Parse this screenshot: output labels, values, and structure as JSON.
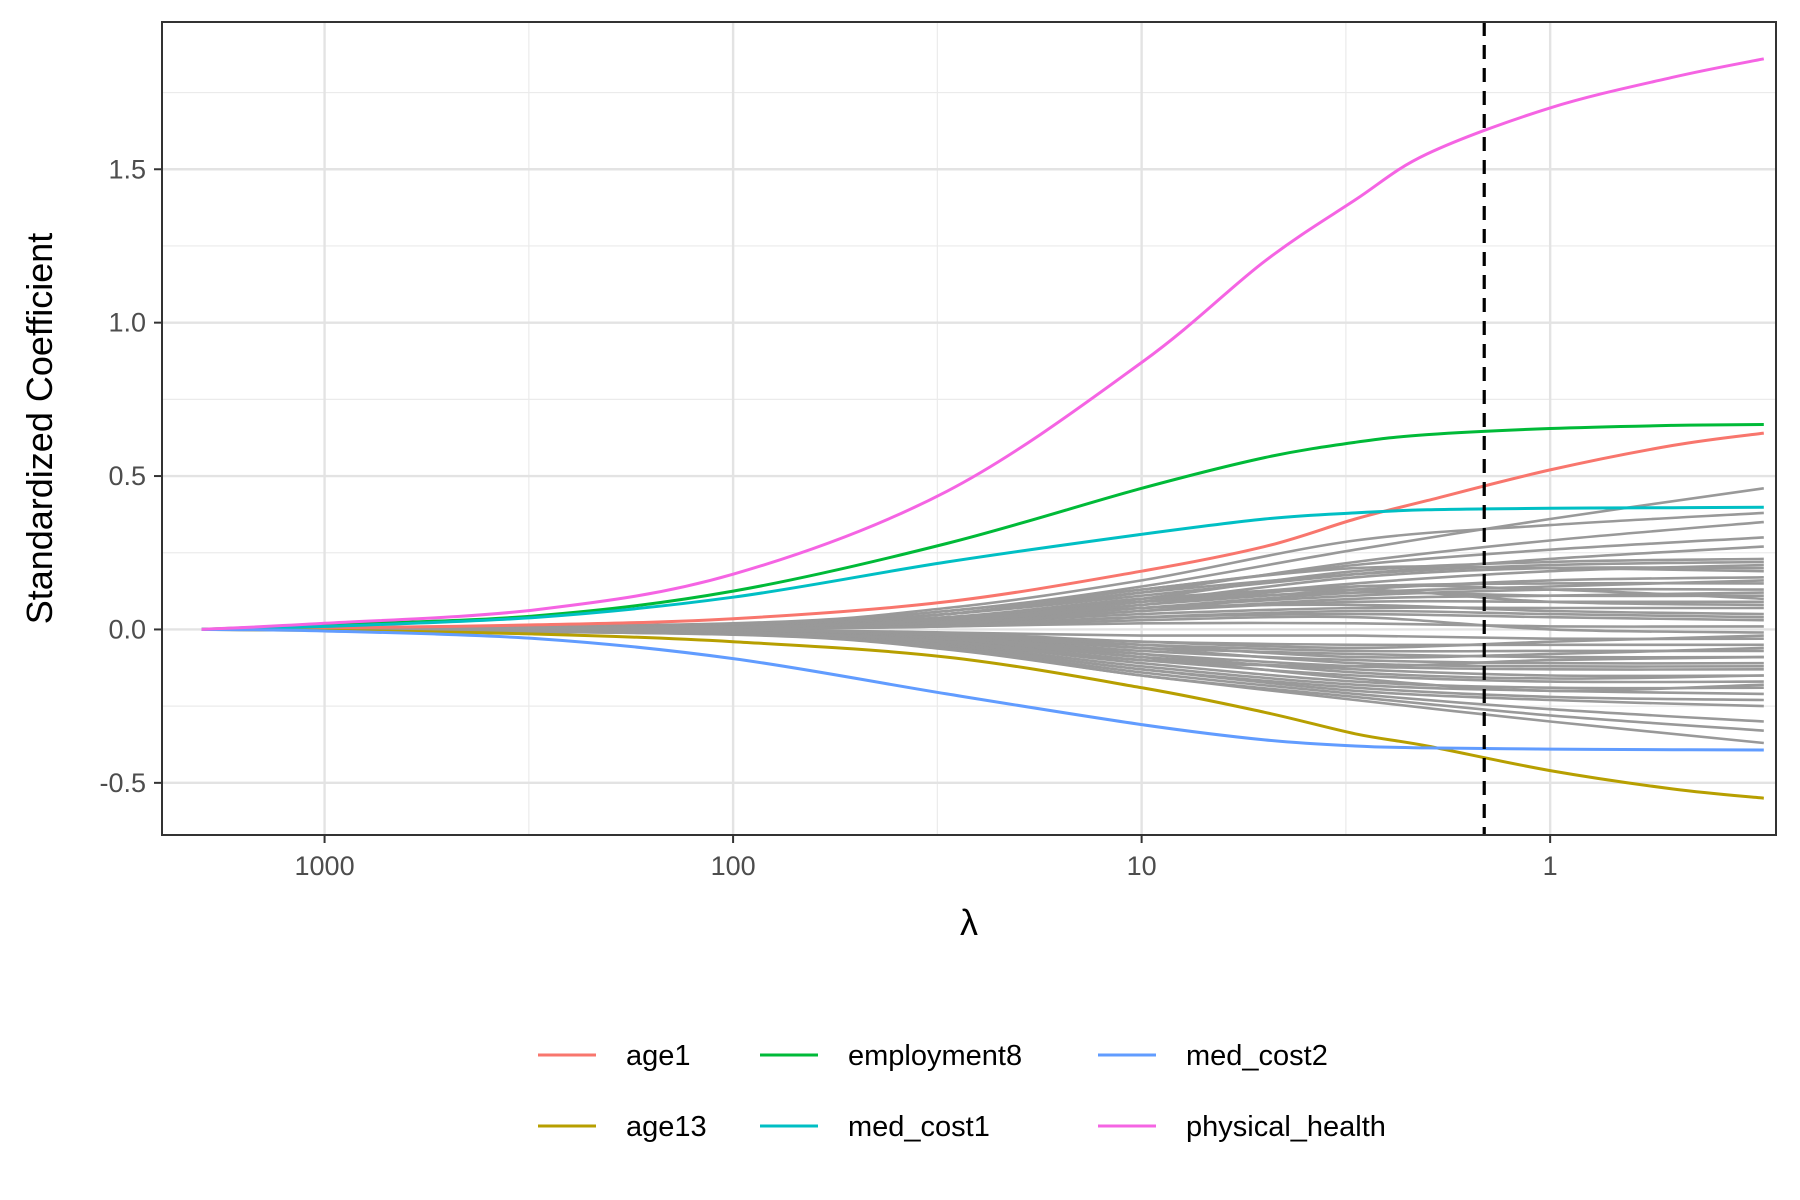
{
  "chart_data": {
    "type": "line",
    "xlabel": "λ",
    "ylabel": "Standardized Coefficient",
    "x_scale": "log-reversed",
    "xlim": [
      2500,
      0.28
    ],
    "ylim": [
      -0.67,
      1.98
    ],
    "x_ticks": [
      {
        "value": 1000,
        "label": "1000"
      },
      {
        "value": 100,
        "label": "100"
      },
      {
        "value": 10,
        "label": "10"
      },
      {
        "value": 1,
        "label": "1"
      }
    ],
    "y_ticks": [
      {
        "value": -0.5,
        "label": "-0.5"
      },
      {
        "value": 0.0,
        "label": "0.0"
      },
      {
        "value": 0.5,
        "label": "0.5"
      },
      {
        "value": 1.0,
        "label": "1.0"
      },
      {
        "value": 1.5,
        "label": "1.5"
      }
    ],
    "grid": true,
    "legend_position": "bottom",
    "reference_line": {
      "x": 1.45,
      "style": "dashed",
      "color": "#000000"
    },
    "series": [
      {
        "name": "age1",
        "color": "#F8766D",
        "x": [
          2000,
          1000,
          300,
          100,
          30,
          10,
          5,
          3,
          2,
          1,
          0.5,
          0.3
        ],
        "y": [
          0.0,
          0.005,
          0.015,
          0.035,
          0.09,
          0.19,
          0.27,
          0.36,
          0.42,
          0.52,
          0.6,
          0.64
        ]
      },
      {
        "name": "age13",
        "color": "#B79F00",
        "x": [
          2000,
          1000,
          300,
          100,
          30,
          10,
          5,
          3,
          2,
          1,
          0.5,
          0.3
        ],
        "y": [
          0.0,
          -0.003,
          -0.015,
          -0.04,
          -0.09,
          -0.19,
          -0.27,
          -0.34,
          -0.38,
          -0.46,
          -0.52,
          -0.55
        ]
      },
      {
        "name": "employment8",
        "color": "#00BA38",
        "x": [
          2000,
          1000,
          300,
          100,
          30,
          10,
          5,
          3,
          2,
          1,
          0.5,
          0.3
        ],
        "y": [
          0.0,
          0.015,
          0.045,
          0.125,
          0.28,
          0.46,
          0.56,
          0.61,
          0.635,
          0.655,
          0.665,
          0.668
        ]
      },
      {
        "name": "med_cost1",
        "color": "#00BFC4",
        "x": [
          2000,
          1000,
          300,
          100,
          30,
          10,
          5,
          3,
          2,
          1,
          0.5,
          0.3
        ],
        "y": [
          0.0,
          0.01,
          0.04,
          0.105,
          0.22,
          0.31,
          0.36,
          0.38,
          0.39,
          0.395,
          0.397,
          0.398
        ]
      },
      {
        "name": "med_cost2",
        "color": "#619CFF",
        "x": [
          2000,
          1000,
          300,
          100,
          30,
          10,
          5,
          3,
          2,
          1,
          0.5,
          0.3
        ],
        "y": [
          0.0,
          -0.005,
          -0.03,
          -0.095,
          -0.21,
          -0.31,
          -0.36,
          -0.38,
          -0.386,
          -0.39,
          -0.392,
          -0.393
        ]
      },
      {
        "name": "physical_health",
        "color": "#F564E3",
        "x": [
          2000,
          1000,
          300,
          100,
          30,
          10,
          5,
          3,
          2,
          1,
          0.5,
          0.3
        ],
        "y": [
          0.0,
          0.02,
          0.065,
          0.18,
          0.45,
          0.87,
          1.2,
          1.4,
          1.55,
          1.7,
          1.8,
          1.86
        ]
      }
    ],
    "other_series_color": "#999999",
    "other_series": [
      {
        "x": [
          2000,
          100,
          30,
          10,
          3,
          1,
          0.3
        ],
        "y": [
          0,
          0.018,
          0.06,
          0.14,
          0.26,
          0.36,
          0.46
        ]
      },
      {
        "x": [
          2000,
          100,
          30,
          10,
          3,
          1,
          0.3
        ],
        "y": [
          0,
          0.02,
          0.07,
          0.16,
          0.29,
          0.34,
          0.38
        ]
      },
      {
        "x": [
          2000,
          100,
          30,
          10,
          3,
          1,
          0.3
        ],
        "y": [
          0,
          0.015,
          0.05,
          0.12,
          0.22,
          0.29,
          0.35
        ]
      },
      {
        "x": [
          2000,
          100,
          30,
          10,
          3,
          1,
          0.3
        ],
        "y": [
          0,
          0.017,
          0.06,
          0.13,
          0.21,
          0.26,
          0.3
        ]
      },
      {
        "x": [
          2000,
          100,
          30,
          10,
          3,
          1,
          0.3
        ],
        "y": [
          0,
          0.012,
          0.05,
          0.11,
          0.18,
          0.23,
          0.27
        ]
      },
      {
        "x": [
          2000,
          100,
          30,
          10,
          3,
          1,
          0.3
        ],
        "y": [
          0,
          0.014,
          0.05,
          0.12,
          0.18,
          0.21,
          0.22
        ]
      },
      {
        "x": [
          2000,
          100,
          30,
          10,
          3,
          1,
          0.3
        ],
        "y": [
          0,
          0.01,
          0.04,
          0.09,
          0.15,
          0.19,
          0.21
        ]
      },
      {
        "x": [
          2000,
          100,
          30,
          10,
          3,
          1,
          0.3
        ],
        "y": [
          0,
          0.012,
          0.05,
          0.13,
          0.2,
          0.2,
          0.19
        ]
      },
      {
        "x": [
          2000,
          100,
          30,
          10,
          3,
          1,
          0.3
        ],
        "y": [
          0,
          0.008,
          0.03,
          0.08,
          0.13,
          0.16,
          0.17
        ]
      },
      {
        "x": [
          2000,
          100,
          30,
          10,
          3,
          1,
          0.3
        ],
        "y": [
          0,
          0.01,
          0.04,
          0.1,
          0.14,
          0.15,
          0.15
        ]
      },
      {
        "x": [
          2000,
          100,
          30,
          10,
          3,
          1,
          0.3
        ],
        "y": [
          0,
          0.007,
          0.025,
          0.07,
          0.11,
          0.13,
          0.13
        ]
      },
      {
        "x": [
          2000,
          100,
          30,
          10,
          3,
          1,
          0.3
        ],
        "y": [
          0,
          0.008,
          0.035,
          0.09,
          0.12,
          0.11,
          0.11
        ]
      },
      {
        "x": [
          2000,
          100,
          30,
          10,
          3,
          1,
          0.3
        ],
        "y": [
          0,
          0.006,
          0.02,
          0.06,
          0.09,
          0.09,
          0.09
        ]
      },
      {
        "x": [
          2000,
          100,
          30,
          10,
          3,
          1,
          0.3
        ],
        "y": [
          0,
          0.005,
          0.02,
          0.05,
          0.07,
          0.07,
          0.07
        ]
      },
      {
        "x": [
          2000,
          100,
          30,
          10,
          3,
          1,
          0.3
        ],
        "y": [
          0,
          0.006,
          0.025,
          0.07,
          0.08,
          0.06,
          0.05
        ]
      },
      {
        "x": [
          2000,
          100,
          30,
          10,
          3,
          1,
          0.3
        ],
        "y": [
          0,
          0.004,
          0.015,
          0.04,
          0.05,
          0.04,
          0.03
        ]
      },
      {
        "x": [
          2000,
          100,
          30,
          10,
          3,
          1,
          0.3
        ],
        "y": [
          0,
          0.003,
          0.01,
          0.02,
          0.02,
          0.01,
          0.01
        ]
      },
      {
        "x": [
          2000,
          100,
          30,
          10,
          3,
          1,
          0.3
        ],
        "y": [
          0,
          0.003,
          0.01,
          0.03,
          0.04,
          0.0,
          -0.01
        ]
      },
      {
        "x": [
          2000,
          100,
          30,
          10,
          3,
          1,
          0.3
        ],
        "y": [
          0,
          -0.002,
          -0.01,
          -0.02,
          -0.02,
          -0.03,
          -0.03
        ]
      },
      {
        "x": [
          2000,
          100,
          30,
          10,
          3,
          1,
          0.3
        ],
        "y": [
          0,
          -0.003,
          -0.015,
          -0.04,
          -0.05,
          -0.05,
          -0.05
        ]
      },
      {
        "x": [
          2000,
          100,
          30,
          10,
          3,
          1,
          0.3
        ],
        "y": [
          0,
          -0.004,
          -0.02,
          -0.05,
          -0.07,
          -0.07,
          -0.07
        ]
      },
      {
        "x": [
          2000,
          100,
          30,
          10,
          3,
          1,
          0.3
        ],
        "y": [
          0,
          -0.005,
          -0.02,
          -0.06,
          -0.08,
          -0.09,
          -0.09
        ]
      },
      {
        "x": [
          2000,
          100,
          30,
          10,
          3,
          1,
          0.3
        ],
        "y": [
          0,
          -0.006,
          -0.025,
          -0.07,
          -0.1,
          -0.11,
          -0.11
        ]
      },
      {
        "x": [
          2000,
          100,
          30,
          10,
          3,
          1,
          0.3
        ],
        "y": [
          0,
          -0.007,
          -0.03,
          -0.08,
          -0.12,
          -0.13,
          -0.13
        ]
      },
      {
        "x": [
          2000,
          100,
          30,
          10,
          3,
          1,
          0.3
        ],
        "y": [
          0,
          -0.008,
          -0.035,
          -0.09,
          -0.13,
          -0.15,
          -0.15
        ]
      },
      {
        "x": [
          2000,
          100,
          30,
          10,
          3,
          1,
          0.3
        ],
        "y": [
          0,
          -0.009,
          -0.04,
          -0.1,
          -0.15,
          -0.17,
          -0.17
        ]
      },
      {
        "x": [
          2000,
          100,
          30,
          10,
          3,
          1,
          0.3
        ],
        "y": [
          0,
          -0.01,
          -0.045,
          -0.11,
          -0.17,
          -0.19,
          -0.19
        ]
      },
      {
        "x": [
          2000,
          100,
          30,
          10,
          3,
          1,
          0.3
        ],
        "y": [
          0,
          -0.012,
          -0.05,
          -0.12,
          -0.18,
          -0.2,
          -0.21
        ]
      },
      {
        "x": [
          2000,
          100,
          30,
          10,
          3,
          1,
          0.3
        ],
        "y": [
          0,
          -0.013,
          -0.055,
          -0.13,
          -0.19,
          -0.22,
          -0.23
        ]
      },
      {
        "x": [
          2000,
          100,
          30,
          10,
          3,
          1,
          0.3
        ],
        "y": [
          0,
          -0.013,
          -0.055,
          -0.13,
          -0.2,
          -0.23,
          -0.25
        ]
      },
      {
        "x": [
          2000,
          100,
          30,
          10,
          3,
          1,
          0.3
        ],
        "y": [
          0,
          -0.015,
          -0.06,
          -0.14,
          -0.21,
          -0.26,
          -0.3
        ]
      },
      {
        "x": [
          2000,
          100,
          30,
          10,
          3,
          1,
          0.3
        ],
        "y": [
          0,
          -0.016,
          -0.06,
          -0.15,
          -0.22,
          -0.28,
          -0.33
        ]
      },
      {
        "x": [
          2000,
          100,
          30,
          10,
          3,
          1,
          0.3
        ],
        "y": [
          0,
          -0.017,
          -0.065,
          -0.15,
          -0.23,
          -0.3,
          -0.37
        ]
      },
      {
        "x": [
          2000,
          100,
          30,
          10,
          3,
          1,
          0.3
        ],
        "y": [
          0,
          0.009,
          0.03,
          0.1,
          0.19,
          0.22,
          0.23
        ]
      },
      {
        "x": [
          2000,
          100,
          30,
          10,
          3,
          1,
          0.3
        ],
        "y": [
          0,
          -0.008,
          -0.03,
          -0.09,
          -0.16,
          -0.2,
          -0.18
        ]
      },
      {
        "x": [
          2000,
          100,
          30,
          10,
          3,
          1,
          0.3
        ],
        "y": [
          0,
          0.007,
          0.03,
          0.09,
          0.17,
          0.2,
          0.2
        ]
      },
      {
        "x": [
          2000,
          100,
          30,
          10,
          3,
          1,
          0.3
        ],
        "y": [
          0,
          -0.006,
          -0.025,
          -0.08,
          -0.14,
          -0.16,
          -0.15
        ]
      },
      {
        "x": [
          2000,
          100,
          30,
          10,
          3,
          1,
          0.3
        ],
        "y": [
          0,
          0.005,
          0.02,
          0.07,
          0.12,
          0.14,
          0.16
        ]
      },
      {
        "x": [
          2000,
          100,
          30,
          10,
          3,
          1,
          0.3
        ],
        "y": [
          0,
          -0.005,
          -0.02,
          -0.06,
          -0.11,
          -0.12,
          -0.12
        ]
      },
      {
        "x": [
          2000,
          100,
          30,
          10,
          3,
          1,
          0.3
        ],
        "y": [
          0,
          0.004,
          0.02,
          0.06,
          0.1,
          0.11,
          0.12
        ]
      },
      {
        "x": [
          2000,
          100,
          30,
          10,
          3,
          1,
          0.3
        ],
        "y": [
          0,
          -0.004,
          -0.018,
          -0.05,
          -0.09,
          -0.08,
          -0.06
        ]
      },
      {
        "x": [
          2000,
          100,
          30,
          10,
          3,
          1,
          0.3
        ],
        "y": [
          0,
          0.006,
          0.025,
          0.08,
          0.14,
          0.13,
          0.1
        ]
      },
      {
        "x": [
          2000,
          100,
          30,
          10,
          3,
          1,
          0.3
        ],
        "y": [
          0,
          -0.003,
          -0.012,
          -0.04,
          -0.06,
          -0.04,
          -0.02
        ]
      },
      {
        "x": [
          2000,
          100,
          30,
          10,
          3,
          1,
          0.3
        ],
        "y": [
          0,
          0.003,
          0.012,
          0.04,
          0.06,
          0.05,
          0.04
        ]
      },
      {
        "x": [
          2000,
          100,
          30,
          10,
          3,
          1,
          0.3
        ],
        "y": [
          0,
          -0.01,
          -0.04,
          -0.1,
          -0.12,
          -0.1,
          -0.09
        ]
      },
      {
        "x": [
          2000,
          100,
          30,
          10,
          3,
          1,
          0.3
        ],
        "y": [
          0,
          0.008,
          0.035,
          0.1,
          0.13,
          0.09,
          0.08
        ]
      }
    ]
  }
}
